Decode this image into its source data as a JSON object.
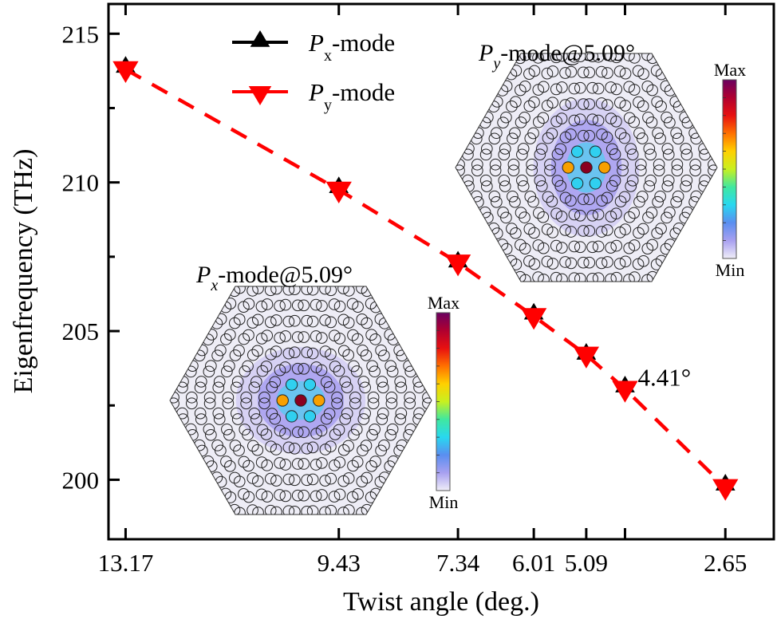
{
  "chart_data": {
    "type": "line",
    "title": "",
    "xlabel": "Twist angle (deg.)",
    "ylabel": "Eigenfrequency (THz)",
    "x_reversed": true,
    "xlim": [
      13.47,
      1.8
    ],
    "ylim": [
      198,
      216
    ],
    "x_ticks": [
      13.17,
      9.43,
      7.34,
      6.01,
      5.09,
      4.41,
      2.65
    ],
    "x_tick_labels": [
      "13.17",
      "9.43",
      "7.34",
      "6.01",
      "5.09",
      "",
      "2.65"
    ],
    "y_ticks_major": [
      200,
      205,
      210,
      215
    ],
    "y_tick_labels": [
      "200",
      "205",
      "210",
      "215"
    ],
    "y_ticks_minor": [
      202.5,
      207.5,
      212.5
    ],
    "grid": false,
    "x": [
      13.17,
      9.43,
      7.34,
      6.01,
      5.09,
      4.41,
      2.65
    ],
    "series": [
      {
        "name": "Px-mode",
        "label_main": "P",
        "label_sub": "x",
        "label_rest": "-mode",
        "marker": "triangle-up",
        "color": "#000000",
        "line": "solid",
        "values": [
          213.9,
          209.85,
          207.35,
          205.6,
          204.25,
          203.15,
          199.85
        ]
      },
      {
        "name": "Py-mode",
        "label_main": "P",
        "label_sub": "y",
        "label_rest": "-mode",
        "marker": "triangle-down",
        "color": "#ff0000",
        "line": "dashed",
        "values": [
          213.8,
          209.75,
          207.3,
          205.5,
          204.2,
          203.05,
          199.75
        ]
      }
    ],
    "legend_position": "top-center",
    "annotations": [
      {
        "text": "4.41°",
        "x": 4.41,
        "y": 203.05
      }
    ],
    "insets": [
      {
        "name": "px-mode-field",
        "title_main": "P",
        "title_sub": "x",
        "title_rest": "-mode@5.09°",
        "colorbar_max": "Max",
        "colorbar_min": "Min",
        "orientation": "horizontal"
      },
      {
        "name": "py-mode-field",
        "title_main": "P",
        "title_sub": "y",
        "title_rest": "-mode@5.09°",
        "colorbar_max": "Max",
        "colorbar_min": "Min",
        "orientation": "vertical"
      }
    ],
    "colormap": [
      "#f0eef8",
      "#a8a0f0",
      "#5a8ef0",
      "#28d8f0",
      "#40e8a0",
      "#c8f020",
      "#ffd000",
      "#ff7000",
      "#e81010",
      "#b00030",
      "#6a0060"
    ]
  }
}
